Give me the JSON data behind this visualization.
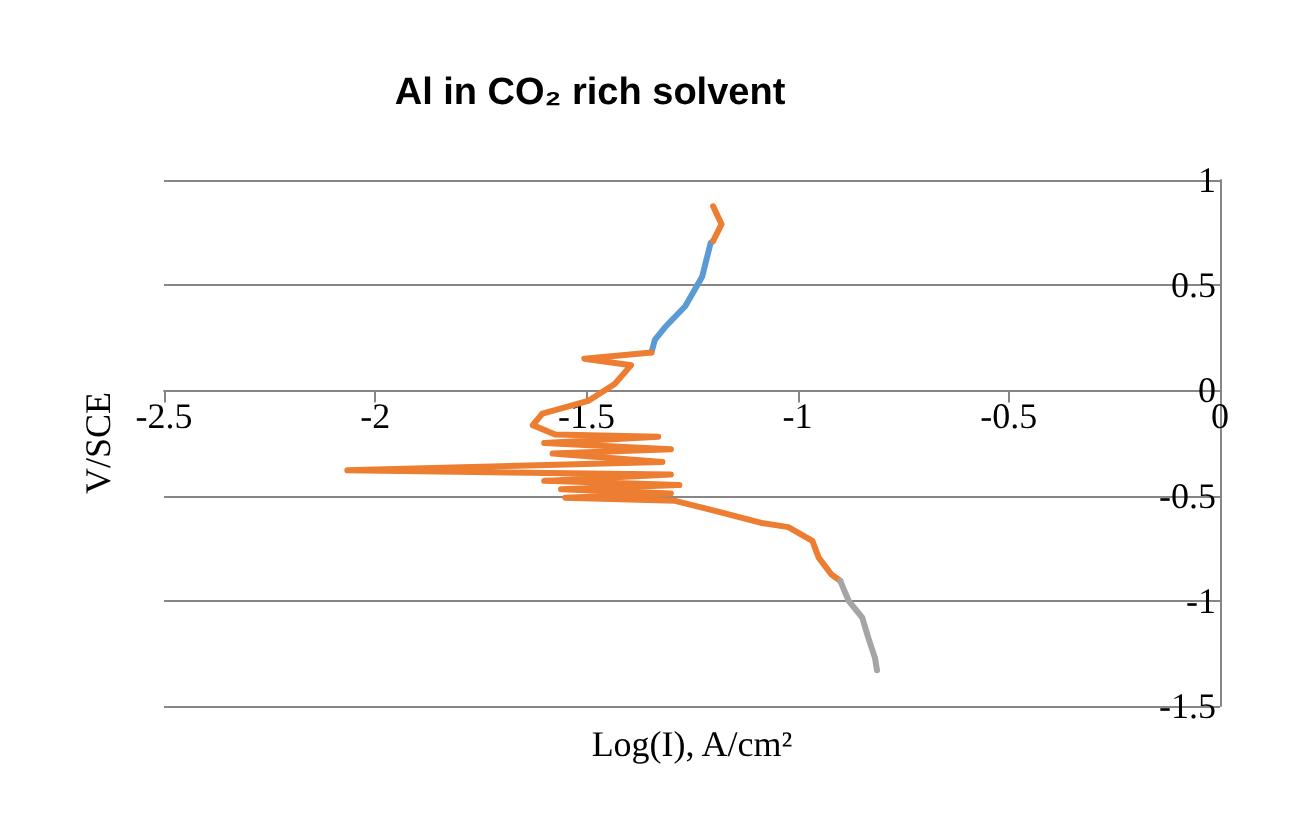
{
  "chart_data": {
    "type": "line",
    "title": "Al in CO₂ rich solvent",
    "xlabel": "Log(I), A/cm²",
    "ylabel": "V/SCE",
    "xlim": [
      -2.5,
      0
    ],
    "ylim": [
      -1.5,
      1
    ],
    "xticks": [
      -2.5,
      -2,
      -1.5,
      -1,
      -0.5,
      0
    ],
    "yticks": [
      -1.5,
      -1,
      -0.5,
      0,
      0.5,
      1
    ],
    "grid": "y",
    "marker": "none",
    "line_style": "solid",
    "series": [
      {
        "color": "#5b9bd5",
        "x": [
          -1.2,
          -1.206,
          -1.226,
          -1.266,
          -1.314,
          -1.338,
          -1.346
        ],
        "values": [
          0.71,
          0.7,
          0.54,
          0.4,
          0.3,
          0.24,
          0.18
        ]
      },
      {
        "color": "#ed7d31",
        "x": [
          -1.2,
          -1.18,
          -1.19,
          -1.2
        ],
        "values": [
          0.875,
          0.79,
          0.75,
          0.71
        ]
      },
      {
        "color": "#ed7d31",
        "x": [
          -1.346,
          -1.505,
          -1.394,
          -1.433,
          -1.496,
          -1.604,
          -1.627,
          -1.574,
          -1.33,
          -1.6,
          -1.3,
          -1.58,
          -1.32,
          -2.066,
          -1.3,
          -1.6,
          -1.28,
          -1.56,
          -1.3,
          -1.55,
          -1.29,
          -1.2,
          -1.086,
          -1.022,
          -0.965,
          -0.95,
          -0.92,
          -0.899
        ],
        "values": [
          0.18,
          0.15,
          0.12,
          0.03,
          -0.05,
          -0.11,
          -0.165,
          -0.21,
          -0.22,
          -0.25,
          -0.28,
          -0.3,
          -0.34,
          -0.38,
          -0.4,
          -0.43,
          -0.45,
          -0.47,
          -0.49,
          -0.51,
          -0.525,
          -0.57,
          -0.63,
          -0.65,
          -0.715,
          -0.795,
          -0.875,
          -0.905
        ]
      },
      {
        "color": "#a5a5a5",
        "x": [
          -0.899,
          -0.879,
          -0.847,
          -0.832,
          -0.817,
          -0.812
        ],
        "values": [
          -0.905,
          -1.0,
          -1.08,
          -1.18,
          -1.27,
          -1.33
        ]
      }
    ]
  }
}
